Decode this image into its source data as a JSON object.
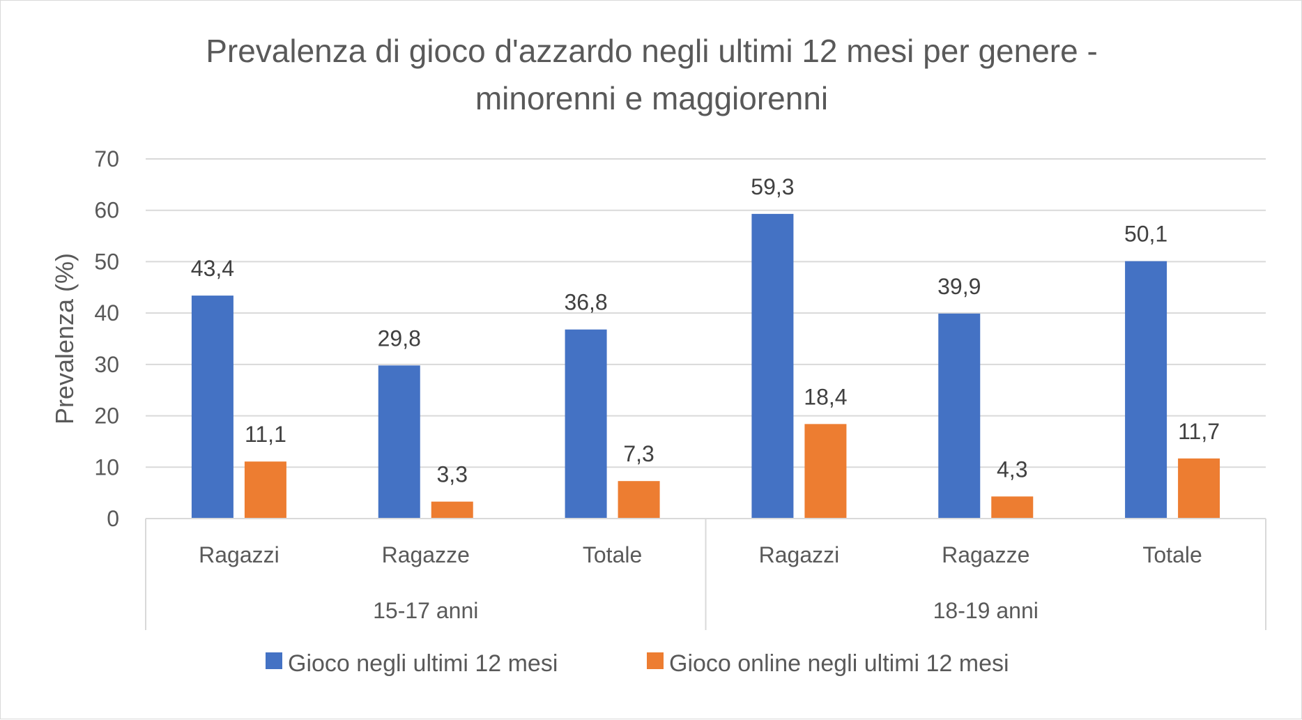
{
  "chart_data": {
    "type": "bar",
    "title_lines": [
      "Prevalenza di gioco d'azzardo negli ultimi 12 mesi per genere -",
      "minorenni e maggiorenni"
    ],
    "ylabel": "Prevalenza (%)",
    "xlabel": "",
    "ylim": [
      0,
      70
    ],
    "yticks": [
      "0",
      "10",
      "20",
      "30",
      "40",
      "50",
      "60",
      "70"
    ],
    "grid": true,
    "legend_position": "bottom",
    "categories": [
      "Ragazzi",
      "Ragazze",
      "Totale",
      "Ragazzi",
      "Ragazze",
      "Totale"
    ],
    "groups": [
      {
        "label": "15-17 anni",
        "span": 3
      },
      {
        "label": "18-19 anni",
        "span": 3
      }
    ],
    "series": [
      {
        "name": "Gioco negli ultimi 12 mesi",
        "color": "#4472c4",
        "values": [
          43.4,
          29.8,
          36.8,
          59.3,
          39.9,
          50.1
        ],
        "labels": [
          "43,4",
          "29,8",
          "36,8",
          "59,3",
          "39,9",
          "50,1"
        ]
      },
      {
        "name": "Gioco online negli ultimi 12 mesi",
        "color": "#ed7d31",
        "values": [
          11.1,
          3.3,
          7.3,
          18.4,
          4.3,
          11.7
        ],
        "labels": [
          "11,1",
          "3,3",
          "7,3",
          "18,4",
          "4,3",
          "11,7"
        ]
      }
    ]
  }
}
